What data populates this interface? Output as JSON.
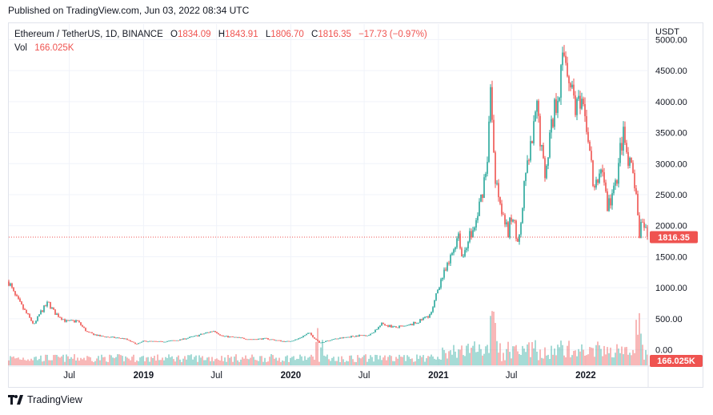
{
  "header": {
    "published": "Published on TradingView.com, Jun 03, 2022 08:34 UTC"
  },
  "legend": {
    "symbol": "Ethereum / TetherUS, 1D, BINANCE",
    "open_label": "O",
    "open": "1834.09",
    "high_label": "H",
    "high": "1843.91",
    "low_label": "L",
    "low": "1806.70",
    "close_label": "C",
    "close": "1816.35",
    "change": "−17.73 (−0.97%)",
    "vol_label": "Vol",
    "vol": "166.025K"
  },
  "footer": {
    "brand": "TradingView",
    "logo_icon": "tradingview-logo-icon"
  },
  "colors": {
    "up": "#26a69a",
    "down": "#ef5350",
    "grid": "#f0f3fa",
    "text": "#131722"
  },
  "chart_data": {
    "type": "candlestick",
    "symbol": "ETH/USDT",
    "interval": "1D",
    "exchange": "BINANCE",
    "currency_label": "USDT",
    "x_range": [
      "2018-02-01",
      "2022-06-03"
    ],
    "ylim": [
      -250,
      5250
    ],
    "y_ticks": [
      0,
      500,
      1000,
      1500,
      2000,
      2500,
      3000,
      3500,
      4000,
      4500,
      5000
    ],
    "y_tick_labels": [
      "0.00",
      "500.00",
      "1000.00",
      "1500.00",
      "2000.00",
      "2500.00",
      "3000.00",
      "3500.00",
      "4000.00",
      "4500.00",
      "5000.00"
    ],
    "x_ticks": [
      {
        "date": "2018-07-01",
        "label": "Jul",
        "bold": false
      },
      {
        "date": "2019-01-01",
        "label": "2019",
        "bold": true
      },
      {
        "date": "2019-07-01",
        "label": "Jul",
        "bold": false
      },
      {
        "date": "2020-01-01",
        "label": "2020",
        "bold": true
      },
      {
        "date": "2020-07-01",
        "label": "Jul",
        "bold": false
      },
      {
        "date": "2021-01-01",
        "label": "2021",
        "bold": true
      },
      {
        "date": "2021-07-01",
        "label": "Jul",
        "bold": false
      },
      {
        "date": "2022-01-01",
        "label": "2022",
        "bold": true
      }
    ],
    "last_price": 1816.35,
    "last_price_label": "1816.35",
    "last_volume_label": "166.025K",
    "price_path": [
      {
        "date": "2018-02-01",
        "close": 1100
      },
      {
        "date": "2018-02-15",
        "close": 880
      },
      {
        "date": "2018-03-10",
        "close": 650
      },
      {
        "date": "2018-04-05",
        "close": 400
      },
      {
        "date": "2018-04-20",
        "close": 600
      },
      {
        "date": "2018-05-10",
        "close": 760
      },
      {
        "date": "2018-05-25",
        "close": 600
      },
      {
        "date": "2018-06-25",
        "close": 450
      },
      {
        "date": "2018-07-20",
        "close": 470
      },
      {
        "date": "2018-08-15",
        "close": 280
      },
      {
        "date": "2018-09-15",
        "close": 220
      },
      {
        "date": "2018-10-15",
        "close": 200
      },
      {
        "date": "2018-11-15",
        "close": 180
      },
      {
        "date": "2018-12-15",
        "close": 90
      },
      {
        "date": "2019-01-01",
        "close": 140
      },
      {
        "date": "2019-02-15",
        "close": 130
      },
      {
        "date": "2019-04-01",
        "close": 160
      },
      {
        "date": "2019-05-15",
        "close": 230
      },
      {
        "date": "2019-06-25",
        "close": 310
      },
      {
        "date": "2019-07-15",
        "close": 220
      },
      {
        "date": "2019-08-15",
        "close": 200
      },
      {
        "date": "2019-09-25",
        "close": 170
      },
      {
        "date": "2019-11-01",
        "close": 180
      },
      {
        "date": "2019-12-20",
        "close": 130
      },
      {
        "date": "2020-01-15",
        "close": 165
      },
      {
        "date": "2020-02-15",
        "close": 270
      },
      {
        "date": "2020-03-13",
        "close": 110
      },
      {
        "date": "2020-04-15",
        "close": 170
      },
      {
        "date": "2020-05-15",
        "close": 200
      },
      {
        "date": "2020-06-15",
        "close": 230
      },
      {
        "date": "2020-07-15",
        "close": 240
      },
      {
        "date": "2020-08-15",
        "close": 420
      },
      {
        "date": "2020-09-15",
        "close": 360
      },
      {
        "date": "2020-10-15",
        "close": 380
      },
      {
        "date": "2020-11-15",
        "close": 460
      },
      {
        "date": "2020-12-15",
        "close": 590
      },
      {
        "date": "2021-01-05",
        "close": 1100
      },
      {
        "date": "2021-01-25",
        "close": 1350
      },
      {
        "date": "2021-02-20",
        "close": 1900
      },
      {
        "date": "2021-03-01",
        "close": 1450
      },
      {
        "date": "2021-03-15",
        "close": 1800
      },
      {
        "date": "2021-04-01",
        "close": 1950
      },
      {
        "date": "2021-04-15",
        "close": 2400
      },
      {
        "date": "2021-05-01",
        "close": 3000
      },
      {
        "date": "2021-05-12",
        "close": 4300
      },
      {
        "date": "2021-05-20",
        "close": 2800
      },
      {
        "date": "2021-06-01",
        "close": 2500
      },
      {
        "date": "2021-06-22",
        "close": 1850
      },
      {
        "date": "2021-07-01",
        "close": 2150
      },
      {
        "date": "2021-07-20",
        "close": 1750
      },
      {
        "date": "2021-08-05",
        "close": 2800
      },
      {
        "date": "2021-08-20",
        "close": 3300
      },
      {
        "date": "2021-09-03",
        "close": 3900
      },
      {
        "date": "2021-09-21",
        "close": 2800
      },
      {
        "date": "2021-10-05",
        "close": 3500
      },
      {
        "date": "2021-10-25",
        "close": 4200
      },
      {
        "date": "2021-11-10",
        "close": 4800
      },
      {
        "date": "2021-11-25",
        "close": 4300
      },
      {
        "date": "2021-12-05",
        "close": 4000
      },
      {
        "date": "2021-12-25",
        "close": 3800
      },
      {
        "date": "2022-01-05",
        "close": 3600
      },
      {
        "date": "2022-01-22",
        "close": 2500
      },
      {
        "date": "2022-02-10",
        "close": 3000
      },
      {
        "date": "2022-02-24",
        "close": 2300
      },
      {
        "date": "2022-03-15",
        "close": 2600
      },
      {
        "date": "2022-04-03",
        "close": 3500
      },
      {
        "date": "2022-04-15",
        "close": 3000
      },
      {
        "date": "2022-05-01",
        "close": 2800
      },
      {
        "date": "2022-05-12",
        "close": 1900
      },
      {
        "date": "2022-05-25",
        "close": 2000
      },
      {
        "date": "2022-06-03",
        "close": 1816.35
      }
    ]
  }
}
